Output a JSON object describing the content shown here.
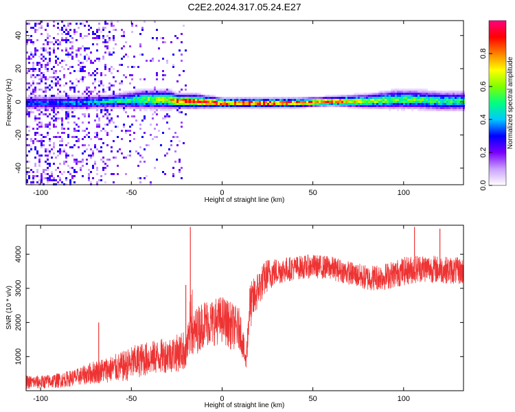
{
  "figure_title": "C2E2.2024.317.05.24.E27",
  "chart_data": [
    {
      "type": "heatmap",
      "xlabel": "Height of straight line (km)",
      "ylabel": "Frequency (Hz)",
      "xlim": [
        -108,
        133
      ],
      "ylim": [
        -50,
        49
      ],
      "x_ticks": [
        -100,
        -50,
        0,
        50,
        100
      ],
      "y_ticks": [
        -40,
        -20,
        0,
        20,
        40
      ],
      "colorbar": {
        "label": "Normalized spectral amplitude",
        "range": [
          0,
          1
        ],
        "ticks": [
          "0.0",
          "0.2",
          "0.4",
          "0.6",
          "0.8"
        ],
        "colors": [
          "#ffffff",
          "#c9a0ff",
          "#7a00ff",
          "#0000ff",
          "#00c8ff",
          "#00ff80",
          "#80ff00",
          "#ffff00",
          "#ff8000",
          "#ff0000",
          "#ff0080"
        ]
      },
      "ridge": {
        "x": [
          -105,
          -80,
          -60,
          -45,
          -30,
          -25,
          -15,
          0,
          20,
          40,
          60,
          80,
          95,
          105,
          120,
          133
        ],
        "center_hz": [
          0,
          0,
          1,
          2,
          2,
          1,
          1,
          0,
          0,
          0,
          1,
          1,
          2,
          2,
          1,
          1
        ],
        "half_width_hz": [
          3,
          3,
          3,
          4,
          4,
          3,
          3,
          2,
          2,
          2,
          2,
          3,
          4,
          4,
          4,
          4
        ],
        "peak_amplitude": [
          0.35,
          0.4,
          0.5,
          0.6,
          0.7,
          0.9,
          0.95,
          0.95,
          0.95,
          0.95,
          0.9,
          0.7,
          0.6,
          0.6,
          0.55,
          0.55
        ]
      }
    },
    {
      "type": "line",
      "xlabel": "Height of straight line (km)",
      "ylabel": "SNR (10 * v/v)",
      "xlim": [
        -108,
        133
      ],
      "ylim": [
        0,
        4850
      ],
      "x_ticks": [
        -100,
        -50,
        0,
        50,
        100
      ],
      "y_ticks": [
        1000,
        2000,
        3000,
        4000
      ],
      "color": "#ee3333",
      "series": [
        {
          "x": [
            -108,
            -100,
            -90,
            -80,
            -70,
            -60,
            -55,
            -50,
            -45,
            -40,
            -35,
            -30,
            -25,
            -20,
            -18,
            -17,
            -16,
            -15,
            -10,
            -5,
            0,
            5,
            10,
            12,
            13,
            14,
            15,
            20,
            25,
            30,
            40,
            50,
            60,
            70,
            80,
            90,
            100,
            110,
            120,
            133
          ],
          "y": [
            250,
            250,
            300,
            400,
            550,
            650,
            700,
            800,
            900,
            950,
            1000,
            1050,
            1100,
            1200,
            1500,
            2500,
            1600,
            1700,
            2000,
            2000,
            2100,
            1900,
            1800,
            1200,
            800,
            1500,
            2400,
            3000,
            3400,
            3500,
            3600,
            3650,
            3600,
            3450,
            3300,
            3350,
            3500,
            3600,
            3550,
            3500
          ],
          "jitter": [
            200,
            200,
            220,
            250,
            350,
            400,
            450,
            500,
            500,
            500,
            500,
            520,
            550,
            600,
            600,
            1500,
            700,
            700,
            700,
            700,
            700,
            700,
            600,
            400,
            300,
            500,
            700,
            550,
            500,
            400,
            350,
            350,
            350,
            350,
            380,
            400,
            420,
            420,
            400,
            400
          ],
          "spikes": [
            {
              "x": -17.5,
              "y": 4800
            },
            {
              "x": -20,
              "y": 3100
            },
            {
              "x": -68,
              "y": 2000
            },
            {
              "x": 106,
              "y": 4800
            },
            {
              "x": 120,
              "y": 4750
            }
          ]
        }
      ]
    }
  ]
}
